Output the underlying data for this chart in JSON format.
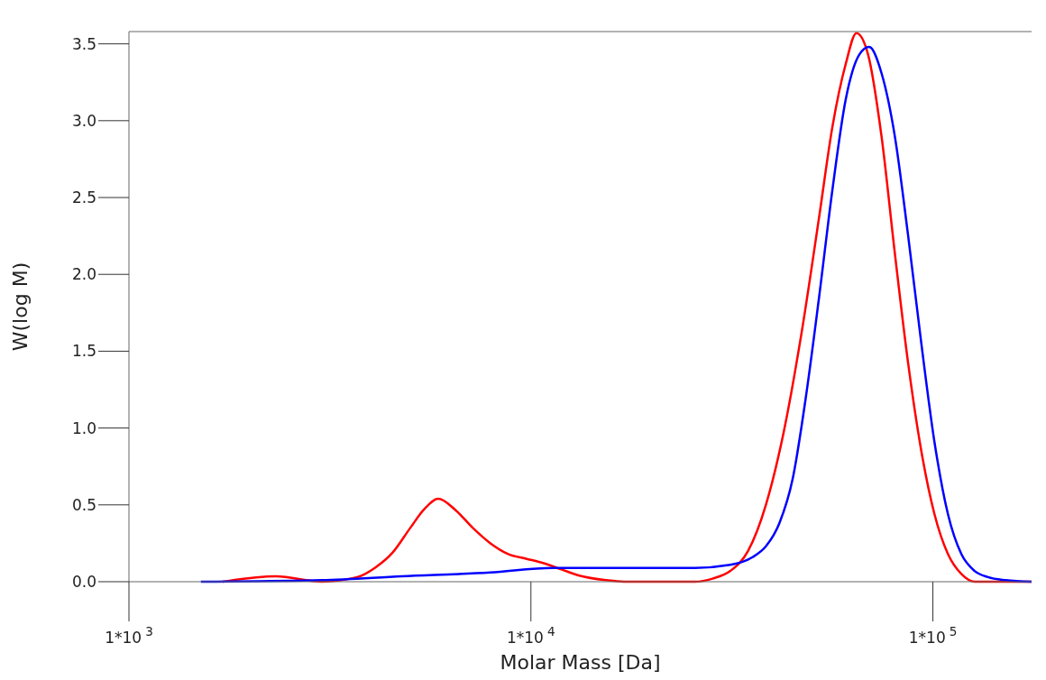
{
  "chart_data": {
    "type": "line",
    "xlabel": "Molar Mass [Da]",
    "ylabel": "W(log M)",
    "log": "x",
    "xlim": [
      1000,
      176000
    ],
    "ylim": [
      0,
      3.58
    ],
    "xticks": [
      {
        "value": 1000,
        "label": "1*10$^{3}$"
      },
      {
        "value": 10000,
        "label": "1*10$^{4}$"
      },
      {
        "value": 100000,
        "label": "1*10$^{5}$"
      }
    ],
    "yticks": [
      {
        "value": 0,
        "label": "0.0"
      },
      {
        "value": 0.5,
        "label": "0.5"
      },
      {
        "value": 1,
        "label": "1.0"
      },
      {
        "value": 1.5,
        "label": "1.5"
      },
      {
        "value": 2,
        "label": "2.0"
      },
      {
        "value": 2.5,
        "label": "2.5"
      },
      {
        "value": 3,
        "label": "3.0"
      },
      {
        "value": 3.5,
        "label": "3.5"
      }
    ],
    "grid": false,
    "marker": "none",
    "line_style": "solid",
    "series": [
      {
        "color": "#ff0000",
        "x": [
          1710,
          2320,
          3020,
          3700,
          4090,
          4530,
          5010,
          5420,
          5880,
          6470,
          7170,
          7930,
          8780,
          9720,
          10760,
          11910,
          13190,
          15380,
          17020,
          25580,
          28310,
          31340,
          34690,
          38420,
          42520,
          47070,
          52100,
          56240,
          60710,
          64540,
          69000,
          74500,
          80400,
          86700,
          93600,
          100900,
          109000,
          117700,
          127000,
          176000
        ],
        "values": [
          0,
          0.035,
          0,
          0.03,
          0.09,
          0.19,
          0.35,
          0.47,
          0.54,
          0.47,
          0.35,
          0.25,
          0.18,
          0.15,
          0.12,
          0.08,
          0.04,
          0.01,
          0,
          0,
          0.02,
          0.07,
          0.2,
          0.5,
          0.97,
          1.61,
          2.37,
          2.96,
          3.37,
          3.57,
          3.43,
          2.9,
          2.14,
          1.43,
          0.85,
          0.44,
          0.18,
          0.05,
          0,
          0
        ]
      },
      {
        "color": "#0000ff",
        "x": [
          1510,
          3020,
          4770,
          7930,
          11320,
          17020,
          25580,
          31340,
          35600,
          38420,
          41500,
          44800,
          48300,
          52100,
          56240,
          60710,
          65600,
          69400,
          74500,
          80400,
          86700,
          93600,
          100900,
          109000,
          117700,
          127000,
          137000,
          151700,
          176000
        ],
        "values": [
          0,
          0.01,
          0.035,
          0.06,
          0.09,
          0.09,
          0.09,
          0.11,
          0.16,
          0.23,
          0.38,
          0.67,
          1.2,
          1.85,
          2.55,
          3.14,
          3.43,
          3.48,
          3.31,
          2.9,
          2.26,
          1.55,
          0.91,
          0.44,
          0.18,
          0.07,
          0.03,
          0.01,
          0
        ]
      }
    ]
  }
}
